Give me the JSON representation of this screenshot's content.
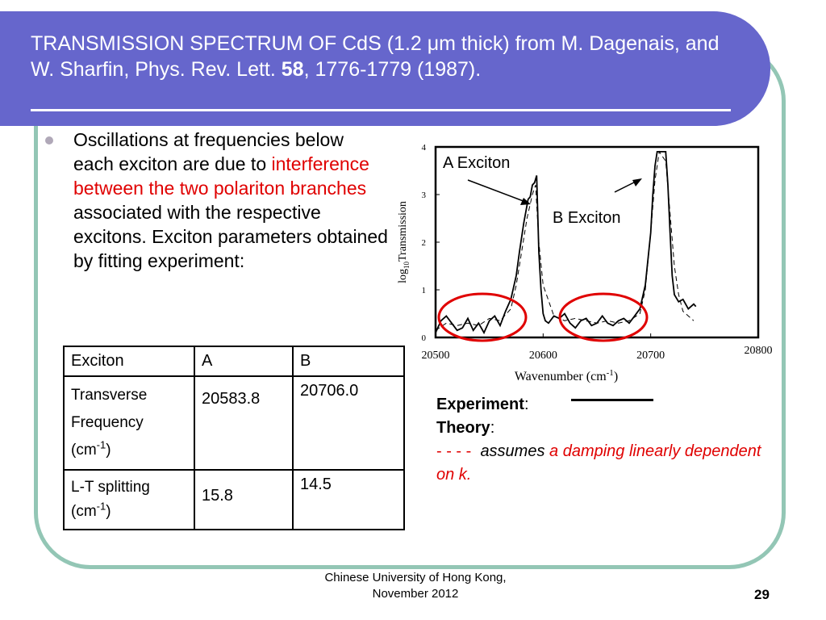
{
  "slide": {
    "title_part1": "TRANSMISSION SPECTRUM OF CdS (1.2 μm thick) from M. Dagenais, and W. Sharfin, Phys. Rev. Lett. ",
    "title_bold": "58",
    "title_part2": ", 1776-1779 (1987).",
    "bullet": {
      "text1": "Oscillations at frequencies below each exciton are due to ",
      "red": "interference between the two polariton branches",
      "text2": " associated with the respective excitons. Exciton parameters obtained by fitting experiment:"
    },
    "table": {
      "headers": [
        "Exciton",
        "A",
        "B"
      ],
      "row1": {
        "label_line1": "Transverse",
        "label_line2": "Frequency",
        "label_unit": "(cm",
        "label_sup": "-1",
        "label_close": ")",
        "a": "20583.8",
        "b": "20706.0"
      },
      "row2": {
        "label_line1": "L-T splitting",
        "label_unit": "(cm",
        "label_sup": "-1",
        "label_close": ")",
        "a": "15.8",
        "b": "14.5"
      }
    },
    "legend": {
      "experiment": "Experiment",
      "theory": "Theory",
      "dashes": "- - - -",
      "assumes": "assumes",
      "red_text": "a damping linearly dependent on k."
    },
    "footer": {
      "line1": "Chinese University of Hong Kong,",
      "line2": "November 2012",
      "page": "29"
    },
    "colors": {
      "title_bg": "#6666cc",
      "frame": "#93c6b5",
      "highlight_red": "#e00000"
    }
  },
  "chart_data": {
    "type": "line",
    "xlabel": "Wavenumber (cm-1)",
    "ylabel": "log10Transmission",
    "xlim": [
      20500,
      20800
    ],
    "ylim": [
      0,
      4
    ],
    "x_ticks": [
      "20500",
      "20600",
      "20700",
      "20800"
    ],
    "y_ticks": [
      "0",
      "1",
      "2",
      "3",
      "4"
    ],
    "annotations": [
      "A Exciton",
      "B Exciton"
    ],
    "series": [
      {
        "style": "solid",
        "x": [
          20500,
          20505,
          20510,
          20515,
          20520,
          20525,
          20530,
          20535,
          20540,
          20545,
          20550,
          20555,
          20560,
          20565,
          20570,
          20575,
          20578,
          20582,
          20586,
          20588,
          20590,
          20592,
          20594,
          20596,
          20598,
          20600,
          20602,
          20605,
          20610,
          20615,
          20620,
          20625,
          20630,
          20635,
          20640,
          20645,
          20650,
          20655,
          20660,
          20665,
          20670,
          20675,
          20680,
          20685,
          20690,
          20695,
          20700,
          20702,
          20704,
          20706,
          20710,
          20714,
          20716,
          20718,
          20720,
          20722,
          20726,
          20730,
          20735,
          20740,
          20742
        ],
        "y": [
          0.1,
          0.35,
          0.45,
          0.3,
          0.15,
          0.2,
          0.4,
          0.15,
          0.3,
          0.1,
          0.35,
          0.45,
          0.25,
          0.55,
          0.8,
          1.3,
          1.8,
          2.4,
          2.9,
          2.95,
          3.2,
          3.25,
          3.4,
          1.8,
          1.0,
          0.5,
          0.35,
          0.3,
          0.45,
          0.4,
          0.5,
          0.3,
          0.2,
          0.35,
          0.4,
          0.25,
          0.3,
          0.45,
          0.3,
          0.25,
          0.35,
          0.4,
          0.3,
          0.45,
          0.6,
          1.1,
          2.2,
          3.0,
          3.6,
          3.9,
          3.9,
          3.9,
          3.2,
          2.2,
          1.3,
          0.9,
          0.75,
          0.8,
          0.6,
          0.7,
          0.65
        ]
      },
      {
        "style": "dashed",
        "x": [
          20500,
          20510,
          20520,
          20530,
          20540,
          20550,
          20560,
          20570,
          20575,
          20580,
          20585,
          20590,
          20593,
          20596,
          20600,
          20610,
          20620,
          20630,
          20640,
          20650,
          20660,
          20670,
          20680,
          20690,
          20695,
          20700,
          20704,
          20708,
          20714,
          20718,
          20722,
          20726,
          20730,
          20735,
          20740
        ],
        "y": [
          0.15,
          0.3,
          0.25,
          0.3,
          0.25,
          0.4,
          0.35,
          0.6,
          1.1,
          1.8,
          2.5,
          3.0,
          3.2,
          2.0,
          1.1,
          0.45,
          0.35,
          0.4,
          0.35,
          0.3,
          0.35,
          0.3,
          0.35,
          0.5,
          1.0,
          2.2,
          3.3,
          3.9,
          3.7,
          2.6,
          1.5,
          0.9,
          0.55,
          0.45,
          0.35
        ]
      }
    ]
  }
}
